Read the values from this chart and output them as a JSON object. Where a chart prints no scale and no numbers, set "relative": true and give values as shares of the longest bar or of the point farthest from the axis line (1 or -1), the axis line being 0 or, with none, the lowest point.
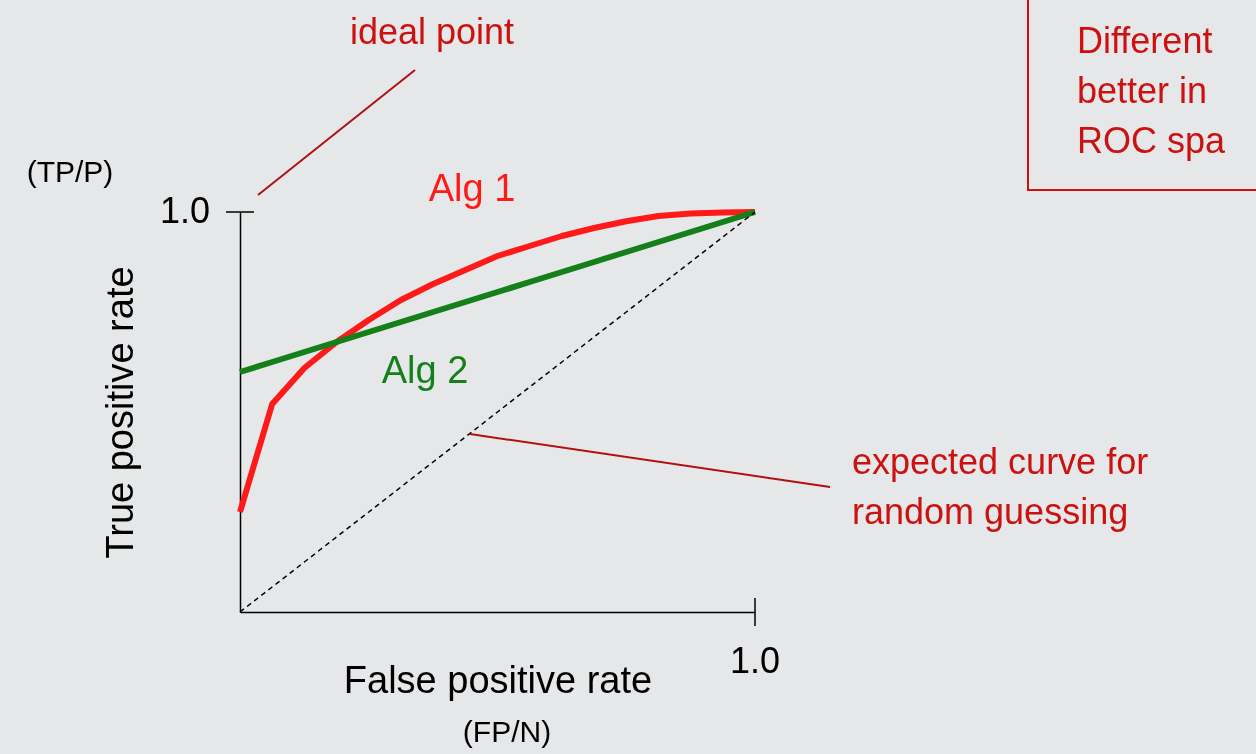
{
  "chart_data": {
    "type": "line",
    "xlabel": "False positive rate",
    "ylabel": "True positive rate",
    "annotations": [
      "ideal point",
      "(TP/P)",
      "(FP/N)",
      "expected curve for\nrandom guessing",
      "Different\nbetter in\nROC spa",
      "1.0",
      "1.0"
    ],
    "relative": true,
    "categories": [
      null,
      null,
      null,
      null,
      null,
      null,
      null,
      null,
      null,
      null,
      null,
      null,
      null,
      null,
      null,
      null,
      null
    ],
    "series": [
      {
        "name": "Alg 1",
        "color": "#ff1a1a",
        "values": [
          0.25,
          0.52,
          0.61,
          0.675,
          0.73,
          0.78,
          0.82,
          0.855,
          0.89,
          0.915,
          0.94,
          0.96,
          0.977,
          0.99,
          0.996,
          0.999,
          1
        ]
      },
      {
        "name": "Alg 2",
        "color": "#15801a",
        "values": [
          0.6,
          0.625,
          0.65,
          0.675,
          0.7,
          0.725,
          0.75,
          0.775,
          0.8,
          0.825,
          0.85,
          0.875,
          0.9,
          0.925,
          0.95,
          0.975,
          1
        ]
      },
      {
        "color": "#000000",
        "values": [
          0,
          0.0625,
          0.125,
          0.1875,
          0.25,
          0.3125,
          0.375,
          0.4375,
          0.5,
          0.5625,
          0.625,
          0.6875,
          0.75,
          0.8125,
          0.875,
          0.9375,
          1
        ],
        "line_style": "dashed"
      }
    ],
    "marker": "none",
    "line_style": "solid"
  }
}
